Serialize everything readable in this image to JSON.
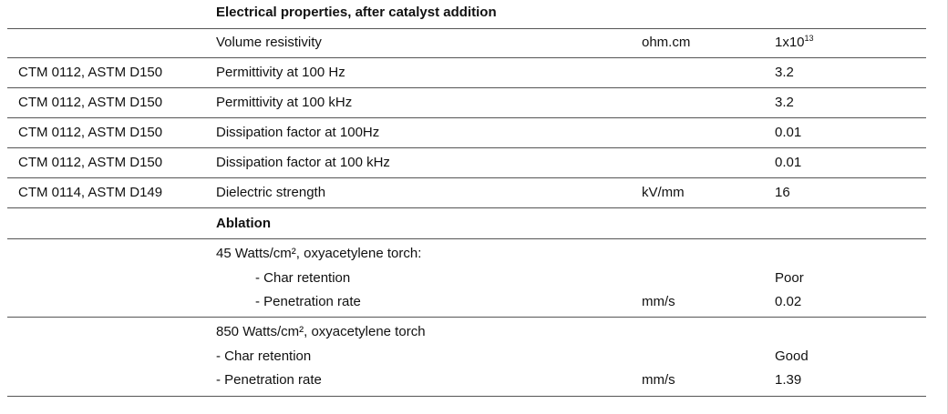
{
  "sections": {
    "electrical": {
      "heading": "Electrical properties, after catalyst addition",
      "rows": [
        {
          "method": "",
          "property": "Volume resistivity",
          "unit": "ohm.cm",
          "value_base": "1x10",
          "value_exp": "13"
        },
        {
          "method": "CTM 0112, ASTM D150",
          "property": "Permittivity at 100 Hz",
          "unit": "",
          "value": "3.2"
        },
        {
          "method": "CTM 0112, ASTM D150",
          "property": "Permittivity at 100 kHz",
          "unit": "",
          "value": "3.2"
        },
        {
          "method": "CTM 0112, ASTM D150",
          "property": "Dissipation factor at 100Hz",
          "unit": "",
          "value": "0.01"
        },
        {
          "method": "CTM 0112, ASTM D150",
          "property": "Dissipation factor at 100 kHz",
          "unit": "",
          "value": "0.01"
        },
        {
          "method": "CTM 0114, ASTM D149",
          "property": "Dielectric strength",
          "unit": "kV/mm",
          "value": "16"
        }
      ]
    },
    "ablation": {
      "heading": "Ablation",
      "group1": {
        "title": "45 Watts/cm², oxyacetylene torch:",
        "char_label": "- Char retention",
        "char_value": "Poor",
        "pen_label": "- Penetration rate",
        "pen_unit": "mm/s",
        "pen_value": "0.02"
      },
      "group2": {
        "title": "850 Watts/cm², oxyacetylene torch",
        "char_label": "- Char retention",
        "char_value": "Good",
        "pen_label": "- Penetration rate",
        "pen_unit": "mm/s",
        "pen_value": "1.39"
      }
    }
  }
}
